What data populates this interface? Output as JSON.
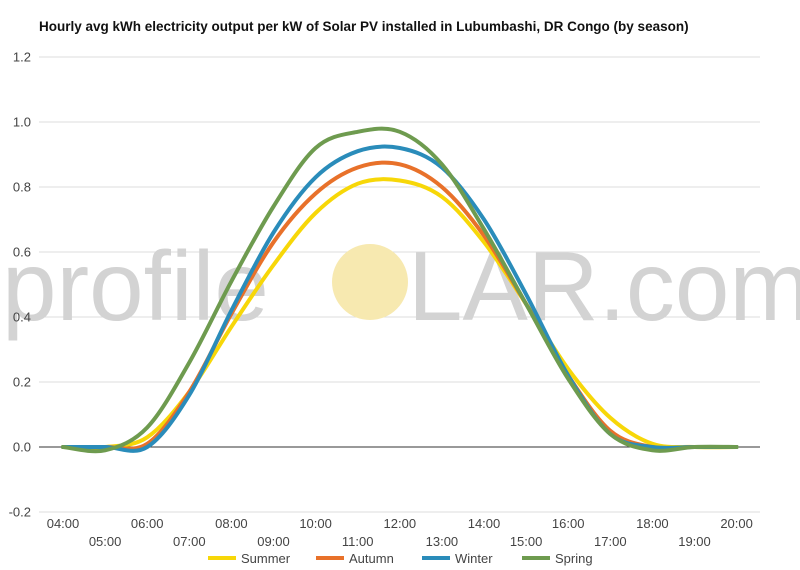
{
  "chart_data": {
    "type": "line",
    "title": "Hourly avg kWh electricity output per kW of Solar PV installed in Lubumbashi, DR Congo (by season)",
    "xlabel": "",
    "ylabel": "",
    "ylim": [
      -0.2,
      1.2
    ],
    "yticks": [
      "-0.2",
      "0.0",
      "0.2",
      "0.4",
      "0.6",
      "0.8",
      "1.0",
      "1.2"
    ],
    "x": [
      "04:00",
      "05:00",
      "06:00",
      "07:00",
      "08:00",
      "09:00",
      "10:00",
      "11:00",
      "12:00",
      "13:00",
      "14:00",
      "15:00",
      "16:00",
      "17:00",
      "18:00",
      "19:00",
      "20:00"
    ],
    "grid": true,
    "legend": "bottom",
    "series": [
      {
        "name": "Summer",
        "color": "#f7d708",
        "values": [
          0,
          0,
          0.03,
          0.17,
          0.37,
          0.56,
          0.72,
          0.81,
          0.82,
          0.77,
          0.63,
          0.44,
          0.24,
          0.09,
          0.01,
          0,
          0
        ]
      },
      {
        "name": "Autumn",
        "color": "#e8712a",
        "values": [
          0,
          0,
          0.01,
          0.17,
          0.41,
          0.63,
          0.78,
          0.86,
          0.87,
          0.8,
          0.65,
          0.44,
          0.22,
          0.05,
          0,
          0,
          0
        ]
      },
      {
        "name": "Winter",
        "color": "#2a8cba",
        "values": [
          0,
          0,
          0,
          0.16,
          0.42,
          0.66,
          0.83,
          0.91,
          0.92,
          0.86,
          0.7,
          0.47,
          0.22,
          0.04,
          0,
          0,
          0
        ]
      },
      {
        "name": "Spring",
        "color": "#6e9b4f",
        "values": [
          0,
          -0.01,
          0.06,
          0.26,
          0.51,
          0.74,
          0.92,
          0.97,
          0.97,
          0.87,
          0.67,
          0.44,
          0.21,
          0.04,
          -0.01,
          0,
          0
        ]
      }
    ]
  },
  "watermark": {
    "left_text": "profile",
    "right_text": "LAR.com",
    "sun_color": "#f7e9b0"
  }
}
